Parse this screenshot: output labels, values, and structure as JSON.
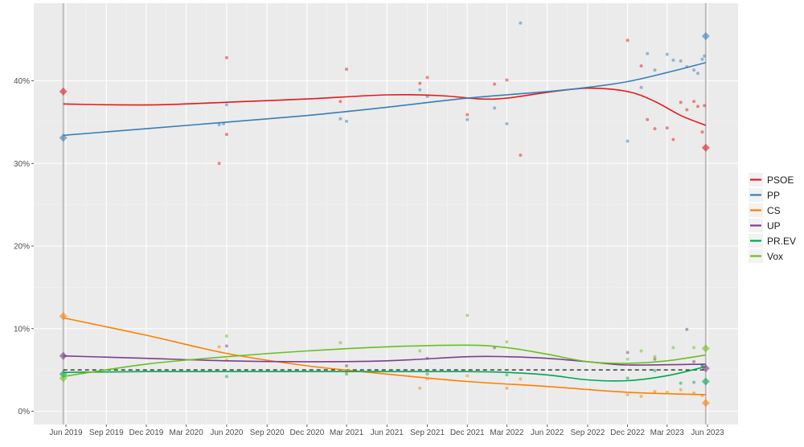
{
  "chart_data": {
    "type": "line",
    "title": "",
    "xlabel": "",
    "ylabel": "",
    "x_range": [
      "2019-04-01",
      "2023-07-01"
    ],
    "ylim": [
      -1,
      48
    ],
    "x_ticks": [
      {
        "date": "2019-06-01",
        "label": "Jun 2019"
      },
      {
        "date": "2019-09-01",
        "label": "Sep 2019"
      },
      {
        "date": "2019-12-01",
        "label": "Dec 2019"
      },
      {
        "date": "2020-03-01",
        "label": "Mar 2020"
      },
      {
        "date": "2020-06-01",
        "label": "Jun 2020"
      },
      {
        "date": "2020-09-01",
        "label": "Sep 2020"
      },
      {
        "date": "2020-12-01",
        "label": "Dec 2020"
      },
      {
        "date": "2021-03-01",
        "label": "Mar 2021"
      },
      {
        "date": "2021-06-01",
        "label": "Jun 2021"
      },
      {
        "date": "2021-09-01",
        "label": "Sep 2021"
      },
      {
        "date": "2021-12-01",
        "label": "Dec 2021"
      },
      {
        "date": "2022-03-01",
        "label": "Mar 2022"
      },
      {
        "date": "2022-06-01",
        "label": "Jun 2022"
      },
      {
        "date": "2022-09-01",
        "label": "Sep 2022"
      },
      {
        "date": "2022-12-01",
        "label": "Dec 2022"
      },
      {
        "date": "2023-03-01",
        "label": "Mar 2023"
      },
      {
        "date": "2023-06-01",
        "label": "Jun 2023"
      }
    ],
    "y_ticks": [
      {
        "value": 0,
        "label": "0%"
      },
      {
        "value": 10,
        "label": "10%"
      },
      {
        "value": 20,
        "label": "20%"
      },
      {
        "value": 30,
        "label": "30%"
      },
      {
        "value": 40,
        "label": "40%"
      }
    ],
    "election_dates": [
      "2019-05-26",
      "2023-05-28"
    ],
    "threshold": 5,
    "grid": true,
    "legend_position": "right",
    "series": [
      {
        "name": "PSOE",
        "color": "#e41a1c",
        "results": [
          {
            "date": "2019-05-26",
            "value": 38.7
          },
          {
            "date": "2023-05-28",
            "value": 31.9
          }
        ],
        "trend": [
          [
            "2019-05-26",
            37.2
          ],
          [
            "2019-09-01",
            37.1
          ],
          [
            "2020-01-01",
            37.1
          ],
          [
            "2020-06-01",
            37.4
          ],
          [
            "2020-12-01",
            37.8
          ],
          [
            "2021-06-01",
            38.3
          ],
          [
            "2021-10-01",
            38.2
          ],
          [
            "2022-01-01",
            37.8
          ],
          [
            "2022-03-01",
            37.9
          ],
          [
            "2022-06-01",
            38.6
          ],
          [
            "2022-09-01",
            39.1
          ],
          [
            "2022-12-01",
            38.7
          ],
          [
            "2023-02-01",
            37.5
          ],
          [
            "2023-04-01",
            35.8
          ],
          [
            "2023-05-28",
            34.6
          ]
        ],
        "polls": [
          [
            "2020-05-15",
            30
          ],
          [
            "2020-06-01",
            42.8
          ],
          [
            "2020-06-01",
            33.5
          ],
          [
            "2021-02-15",
            37.5
          ],
          [
            "2021-03-01",
            41.4
          ],
          [
            "2021-08-15",
            39.7
          ],
          [
            "2021-09-01",
            40.4
          ],
          [
            "2021-12-01",
            35.9
          ],
          [
            "2022-02-01",
            39.6
          ],
          [
            "2022-03-01",
            40.1
          ],
          [
            "2022-04-01",
            31
          ],
          [
            "2022-12-01",
            44.9
          ],
          [
            "2023-01-01",
            41.8
          ],
          [
            "2023-01-15",
            35.3
          ],
          [
            "2023-02-01",
            34.2
          ],
          [
            "2023-03-01",
            34.3
          ],
          [
            "2023-03-15",
            32.9
          ],
          [
            "2023-04-01",
            37.4
          ],
          [
            "2023-04-15",
            36.5
          ],
          [
            "2023-05-01",
            37.5
          ],
          [
            "2023-05-10",
            36.9
          ],
          [
            "2023-05-20",
            33.8
          ],
          [
            "2023-05-25",
            37.0
          ]
        ]
      },
      {
        "name": "PP",
        "color": "#377eb8",
        "results": [
          {
            "date": "2019-05-26",
            "value": 33.1
          },
          {
            "date": "2023-05-28",
            "value": 45.4
          }
        ],
        "trend": [
          [
            "2019-05-26",
            33.4
          ],
          [
            "2019-12-01",
            34.2
          ],
          [
            "2020-06-01",
            35
          ],
          [
            "2020-12-01",
            35.8
          ],
          [
            "2021-06-01",
            36.8
          ],
          [
            "2021-12-01",
            37.9
          ],
          [
            "2022-06-01",
            38.7
          ],
          [
            "2022-09-01",
            39.2
          ],
          [
            "2022-12-01",
            39.9
          ],
          [
            "2023-03-01",
            41
          ],
          [
            "2023-05-28",
            42.2
          ]
        ],
        "polls": [
          [
            "2020-05-15",
            34.7
          ],
          [
            "2020-05-25",
            34.8
          ],
          [
            "2020-06-01",
            37.1
          ],
          [
            "2021-02-15",
            35.4
          ],
          [
            "2021-03-01",
            35.1
          ],
          [
            "2021-08-15",
            38.9
          ],
          [
            "2021-09-01",
            38.1
          ],
          [
            "2021-12-01",
            35.3
          ],
          [
            "2022-02-01",
            36.7
          ],
          [
            "2022-03-01",
            34.8
          ],
          [
            "2022-04-01",
            47
          ],
          [
            "2022-12-01",
            32.7
          ],
          [
            "2023-01-01",
            39.2
          ],
          [
            "2023-01-15",
            43.3
          ],
          [
            "2023-02-01",
            41.3
          ],
          [
            "2023-03-01",
            43.2
          ],
          [
            "2023-03-15",
            42.5
          ],
          [
            "2023-04-01",
            42.4
          ],
          [
            "2023-04-15",
            41.7
          ],
          [
            "2023-05-01",
            41.3
          ],
          [
            "2023-05-10",
            40.9
          ],
          [
            "2023-05-20",
            42.6
          ],
          [
            "2023-05-25",
            43
          ]
        ]
      },
      {
        "name": "CS",
        "color": "#ff7f00",
        "results": [
          {
            "date": "2019-05-26",
            "value": 11.5
          },
          {
            "date": "2023-05-28",
            "value": 1
          }
        ],
        "trend": [
          [
            "2019-05-26",
            11.3
          ],
          [
            "2019-12-01",
            9.2
          ],
          [
            "2020-06-01",
            7
          ],
          [
            "2020-12-01",
            5.5
          ],
          [
            "2021-06-01",
            4.5
          ],
          [
            "2021-12-01",
            3.6
          ],
          [
            "2022-06-01",
            3
          ],
          [
            "2022-12-01",
            2.3
          ],
          [
            "2023-05-28",
            2
          ]
        ],
        "polls": [
          [
            "2020-05-15",
            7.8
          ],
          [
            "2020-06-01",
            6.2
          ],
          [
            "2021-03-01",
            4.8
          ],
          [
            "2021-08-15",
            2.8
          ],
          [
            "2021-09-01",
            3.9
          ],
          [
            "2021-12-01",
            4.3
          ],
          [
            "2022-03-01",
            2.8
          ],
          [
            "2022-04-01",
            3.9
          ],
          [
            "2022-12-01",
            2
          ],
          [
            "2023-01-01",
            1.8
          ],
          [
            "2023-02-01",
            2.4
          ],
          [
            "2023-03-01",
            2.3
          ],
          [
            "2023-04-01",
            2.6
          ],
          [
            "2023-05-01",
            2.2
          ],
          [
            "2023-05-20",
            1.9
          ]
        ]
      },
      {
        "name": "UP",
        "color": "#7b3f8c",
        "results": [
          {
            "date": "2019-05-26",
            "value": 6.7
          },
          {
            "date": "2023-05-28",
            "value": 5.2
          }
        ],
        "trend": [
          [
            "2019-05-26",
            6.7
          ],
          [
            "2019-12-01",
            6.4
          ],
          [
            "2020-06-01",
            6.1
          ],
          [
            "2020-12-01",
            6
          ],
          [
            "2021-06-01",
            6.1
          ],
          [
            "2021-12-01",
            6.6
          ],
          [
            "2022-03-01",
            6.6
          ],
          [
            "2022-06-01",
            6.4
          ],
          [
            "2022-09-01",
            6
          ],
          [
            "2022-12-01",
            5.6
          ],
          [
            "2023-05-28",
            5.7
          ]
        ],
        "polls": [
          [
            "2020-06-01",
            7.9
          ],
          [
            "2021-03-01",
            5.5
          ],
          [
            "2021-09-01",
            6.4
          ],
          [
            "2022-02-01",
            7.7
          ],
          [
            "2022-12-01",
            7.1
          ],
          [
            "2023-02-01",
            6.3
          ],
          [
            "2023-04-15",
            9.9
          ],
          [
            "2023-05-01",
            6
          ],
          [
            "2023-05-20",
            5.6
          ]
        ]
      },
      {
        "name": "PR.EV",
        "color": "#00a651",
        "results": [
          {
            "date": "2019-05-26",
            "value": 4.5
          },
          {
            "date": "2023-05-28",
            "value": 3.6
          }
        ],
        "trend": [
          [
            "2019-05-26",
            4.7
          ],
          [
            "2019-12-01",
            4.8
          ],
          [
            "2020-06-01",
            4.8
          ],
          [
            "2020-12-01",
            4.8
          ],
          [
            "2021-06-01",
            4.8
          ],
          [
            "2021-12-01",
            4.8
          ],
          [
            "2022-03-01",
            4.7
          ],
          [
            "2022-06-01",
            4.4
          ],
          [
            "2022-09-01",
            3.8
          ],
          [
            "2022-12-01",
            3.7
          ],
          [
            "2023-03-01",
            4.3
          ],
          [
            "2023-05-28",
            5.4
          ]
        ],
        "polls": [
          [
            "2020-06-01",
            4.2
          ],
          [
            "2021-03-01",
            4.5
          ],
          [
            "2021-09-01",
            4.5
          ],
          [
            "2022-03-01",
            4.4
          ],
          [
            "2022-12-01",
            4
          ],
          [
            "2023-02-01",
            4.9
          ],
          [
            "2023-04-01",
            3.4
          ],
          [
            "2023-05-01",
            3.5
          ],
          [
            "2023-05-20",
            5.5
          ]
        ]
      },
      {
        "name": "Vox",
        "color": "#6abf1f",
        "results": [
          {
            "date": "2019-05-26",
            "value": 4
          },
          {
            "date": "2023-05-28",
            "value": 7.6
          }
        ],
        "trend": [
          [
            "2019-05-26",
            4.2
          ],
          [
            "2019-12-01",
            5.7
          ],
          [
            "2020-06-01",
            6.6
          ],
          [
            "2020-12-01",
            7.3
          ],
          [
            "2021-06-01",
            7.8
          ],
          [
            "2021-12-01",
            8
          ],
          [
            "2022-03-01",
            7.7
          ],
          [
            "2022-06-01",
            6.9
          ],
          [
            "2022-09-01",
            6
          ],
          [
            "2022-12-01",
            5.8
          ],
          [
            "2023-03-01",
            6.1
          ],
          [
            "2023-05-28",
            6.8
          ]
        ],
        "polls": [
          [
            "2020-06-01",
            9.1
          ],
          [
            "2021-02-15",
            8.3
          ],
          [
            "2021-08-15",
            7.3
          ],
          [
            "2021-12-01",
            11.6
          ],
          [
            "2022-03-01",
            8.4
          ],
          [
            "2022-12-01",
            6.3
          ],
          [
            "2023-01-01",
            7.3
          ],
          [
            "2023-02-01",
            6.6
          ],
          [
            "2023-03-15",
            7.7
          ],
          [
            "2023-05-01",
            7.7
          ]
        ]
      }
    ]
  }
}
